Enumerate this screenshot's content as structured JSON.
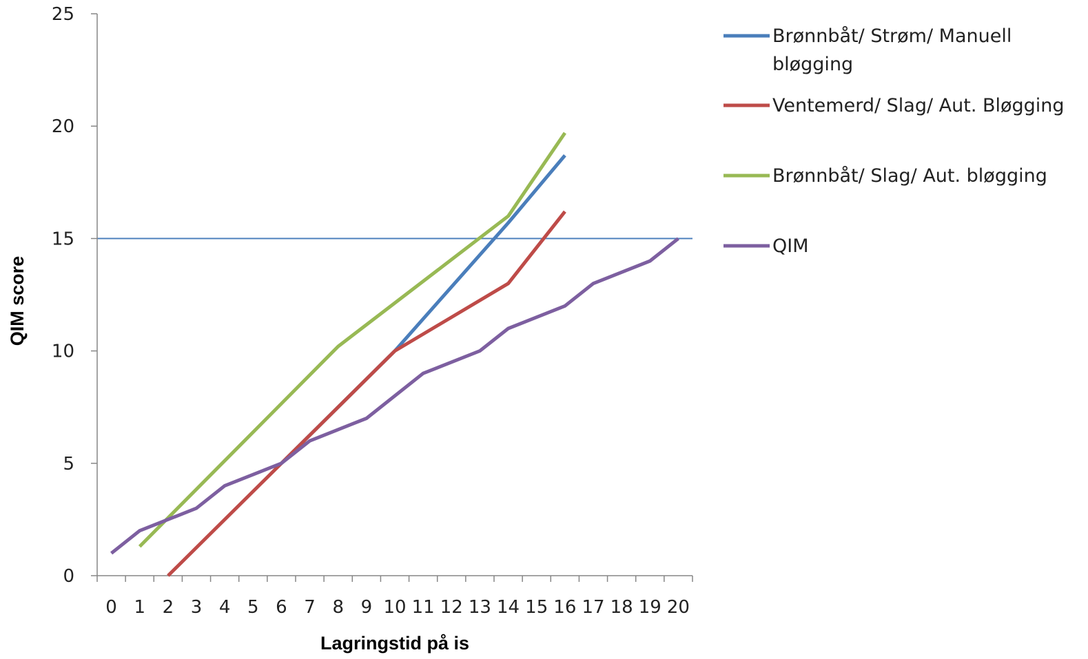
{
  "chart_data": {
    "type": "line",
    "title": "",
    "xlabel": "Lagringstid  på is",
    "ylabel": "QIM score",
    "categories": [
      "0",
      "1",
      "2",
      "3",
      "4",
      "5",
      "6",
      "7",
      "8",
      "9",
      "10",
      "11",
      "12",
      "13",
      "14",
      "15",
      "16",
      "17",
      "18",
      "19",
      "20"
    ],
    "ylim": [
      0,
      25
    ],
    "yticks": [
      0,
      5,
      10,
      15,
      20,
      25
    ],
    "grid": false,
    "legend_position": "right",
    "threshold": {
      "value": 15,
      "color": "#4f81bd"
    },
    "series": [
      {
        "name": "Brønnbåt/ Strøm/ Manuell bløgging",
        "legend_lines": [
          "Brønnbåt/ Strøm/ Manuell",
          "bløgging"
        ],
        "color": "#4a7ebb",
        "points": [
          [
            6,
            5
          ],
          [
            10,
            10
          ],
          [
            14,
            15.7
          ],
          [
            16,
            18.7
          ]
        ]
      },
      {
        "name": "Ventemerd/ Slag/ Aut. Bløgging",
        "legend_lines": [
          "Ventemerd/ Slag/ Aut. Bløgging"
        ],
        "color": "#be4b48",
        "points": [
          [
            2,
            0
          ],
          [
            6,
            5
          ],
          [
            10,
            10
          ],
          [
            14,
            13
          ],
          [
            16,
            16.2
          ]
        ]
      },
      {
        "name": "Brønnbåt/ Slag/ Aut. bløgging",
        "legend_lines": [
          "Brønnbåt/ Slag/ Aut. bløgging"
        ],
        "color": "#98b954",
        "points": [
          [
            1,
            1.3
          ],
          [
            8,
            10.2
          ],
          [
            14,
            16
          ],
          [
            16,
            19.7
          ]
        ]
      },
      {
        "name": "QIM",
        "legend_lines": [
          "QIM"
        ],
        "color": "#7d5fa0",
        "points": [
          [
            0,
            1
          ],
          [
            1,
            2
          ],
          [
            3,
            3
          ],
          [
            4,
            4
          ],
          [
            6,
            5
          ],
          [
            7,
            6
          ],
          [
            9,
            7
          ],
          [
            11,
            9
          ],
          [
            13,
            10
          ],
          [
            14,
            11
          ],
          [
            16,
            12
          ],
          [
            17,
            13
          ],
          [
            19,
            14
          ],
          [
            20,
            15
          ]
        ]
      }
    ]
  }
}
